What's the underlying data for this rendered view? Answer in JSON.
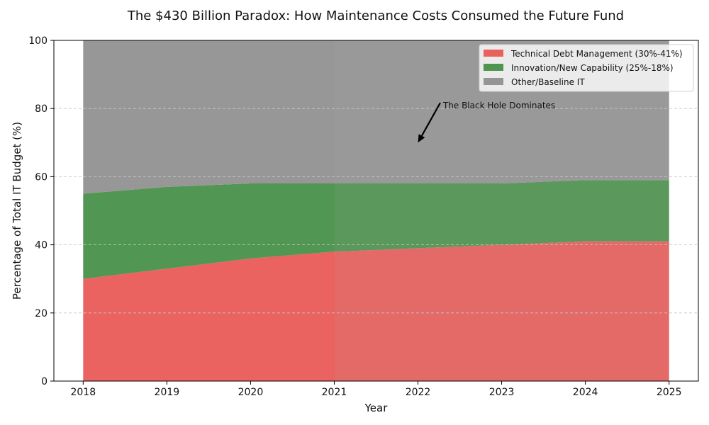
{
  "chart_data": {
    "type": "area",
    "stacked": true,
    "title": "The $430 Billion Paradox: How Maintenance Costs Consumed the Future Fund",
    "xlabel": "Year",
    "ylabel": "Percentage of Total IT Budget (%)",
    "x": [
      2018,
      2019,
      2020,
      2021,
      2022,
      2023,
      2024,
      2025
    ],
    "x_tick_labels": [
      "2018",
      "2019",
      "2020",
      "2021",
      "2022",
      "2023",
      "2024",
      "2025"
    ],
    "xlim": [
      2017.65,
      2025.35
    ],
    "ylim": [
      0,
      100
    ],
    "y_ticks": [
      0,
      20,
      40,
      60,
      80,
      100
    ],
    "y_tick_labels": [
      "0",
      "20",
      "40",
      "60",
      "80",
      "100"
    ],
    "grid": "y-dashed",
    "legend_position": "top-right",
    "series": [
      {
        "name": "Technical Debt Management (30%-41%)",
        "color": "#e8524f",
        "values": [
          30,
          33,
          36,
          38,
          39,
          40,
          41,
          41
        ]
      },
      {
        "name": "Innovation/New Capability (25%-18%)",
        "color": "#3e8b40",
        "values": [
          25,
          24,
          22,
          20,
          19,
          18,
          18,
          18
        ]
      },
      {
        "name": "Other/Baseline IT",
        "color": "#8c8c8c",
        "values": [
          45,
          43,
          42,
          42,
          42,
          42,
          41,
          41
        ]
      }
    ],
    "highlight": {
      "x_start": 2021,
      "x_end": 2025,
      "color": "#b0b0b0"
    },
    "annotation": {
      "text": "The Black Hole Dominates",
      "text_x": 2022.3,
      "text_y": 80,
      "arrow_x": 2022,
      "arrow_y": 70
    }
  }
}
